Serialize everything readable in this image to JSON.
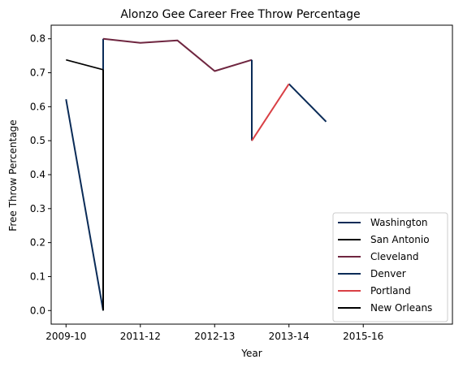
{
  "chart_data": {
    "type": "line",
    "title": "Alonzo Gee Career Free Throw Percentage",
    "xlabel": "Year",
    "ylabel": "Free Throw Percentage",
    "xlim": [
      -0.4,
      10.4
    ],
    "ylim": [
      -0.04,
      0.84
    ],
    "x_ticks": [
      {
        "pos": 0,
        "label": "2009-10"
      },
      {
        "pos": 2,
        "label": "2011-12"
      },
      {
        "pos": 4,
        "label": "2012-13"
      },
      {
        "pos": 6,
        "label": "2013-14"
      },
      {
        "pos": 8,
        "label": "2015-16"
      }
    ],
    "y_ticks": [
      0.0,
      0.1,
      0.2,
      0.3,
      0.4,
      0.5,
      0.6,
      0.7,
      0.8
    ],
    "y_tick_labels": [
      "0.0",
      "0.1",
      "0.2",
      "0.3",
      "0.4",
      "0.5",
      "0.6",
      "0.7",
      "0.8"
    ],
    "legend_position": "lower-right",
    "series": [
      {
        "name": "Washington",
        "color": "#0a2b57",
        "width": 2,
        "points": [
          [
            0,
            0.622
          ],
          [
            1,
            0.0
          ]
        ]
      },
      {
        "name": "San Antonio",
        "color": "#000000",
        "width": 1.6,
        "points": [
          [
            0,
            0.738
          ],
          [
            1,
            0.709
          ]
        ]
      },
      {
        "name": "Cleveland",
        "color": "#6f2640",
        "width": 2,
        "points": [
          [
            1,
            0.8
          ],
          [
            2,
            0.788
          ],
          [
            3,
            0.795
          ],
          [
            4,
            0.705
          ],
          [
            5,
            0.738
          ]
        ]
      },
      {
        "name": "Denver",
        "color": "#0a2b57",
        "width": 2,
        "points": [
          [
            5,
            0.738
          ],
          [
            5,
            0.5
          ]
        ]
      },
      {
        "name": "Portland",
        "color": "#d94045",
        "width": 2,
        "points": [
          [
            5,
            0.5
          ],
          [
            6,
            0.667
          ]
        ]
      },
      {
        "name": "New Orleans",
        "color": "#000000",
        "width": 2,
        "points": [
          [
            1,
            0.709
          ],
          [
            1,
            0.0
          ]
        ]
      }
    ],
    "extra_segments": [
      {
        "color": "#0a2b57",
        "width": 2,
        "points": [
          [
            1,
            0.667
          ],
          [
            1,
            0.8
          ]
        ]
      },
      {
        "color": "#0a2b57",
        "width": 2,
        "points": [
          [
            6,
            0.667
          ],
          [
            7,
            0.556
          ]
        ]
      }
    ]
  }
}
